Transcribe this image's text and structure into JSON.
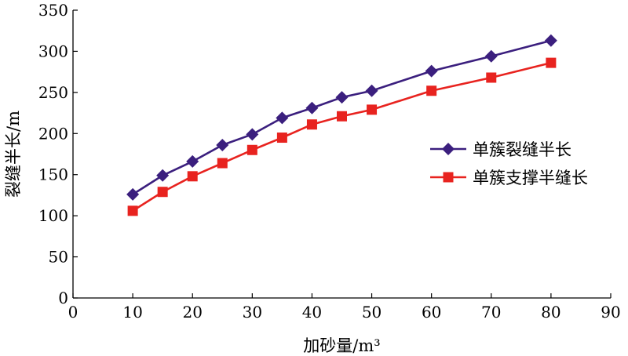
{
  "chart_data": {
    "type": "line",
    "title": "",
    "xlabel": "加砂量/m³",
    "ylabel": "裂缝半长/m",
    "xlim": [
      0,
      90
    ],
    "ylim": [
      0,
      350
    ],
    "x_ticks": [
      0,
      10,
      20,
      30,
      40,
      50,
      60,
      70,
      80,
      90
    ],
    "y_ticks": [
      0,
      50,
      100,
      150,
      200,
      250,
      300,
      350
    ],
    "grid": false,
    "legend_position": "right",
    "series": [
      {
        "name": "单簇裂缝半长",
        "color": "#3b1f7e",
        "marker": "diamond",
        "x": [
          10,
          15,
          20,
          25,
          30,
          35,
          40,
          45,
          50,
          60,
          70,
          80
        ],
        "y": [
          126,
          149,
          166,
          186,
          199,
          219,
          231,
          244,
          252,
          276,
          294,
          313
        ]
      },
      {
        "name": "单簇支撑半缝长",
        "color": "#e8231f",
        "marker": "square",
        "x": [
          10,
          15,
          20,
          25,
          30,
          35,
          40,
          45,
          50,
          60,
          70,
          80
        ],
        "y": [
          106,
          129,
          148,
          164,
          180,
          195,
          211,
          221,
          229,
          252,
          268,
          286
        ]
      }
    ]
  }
}
